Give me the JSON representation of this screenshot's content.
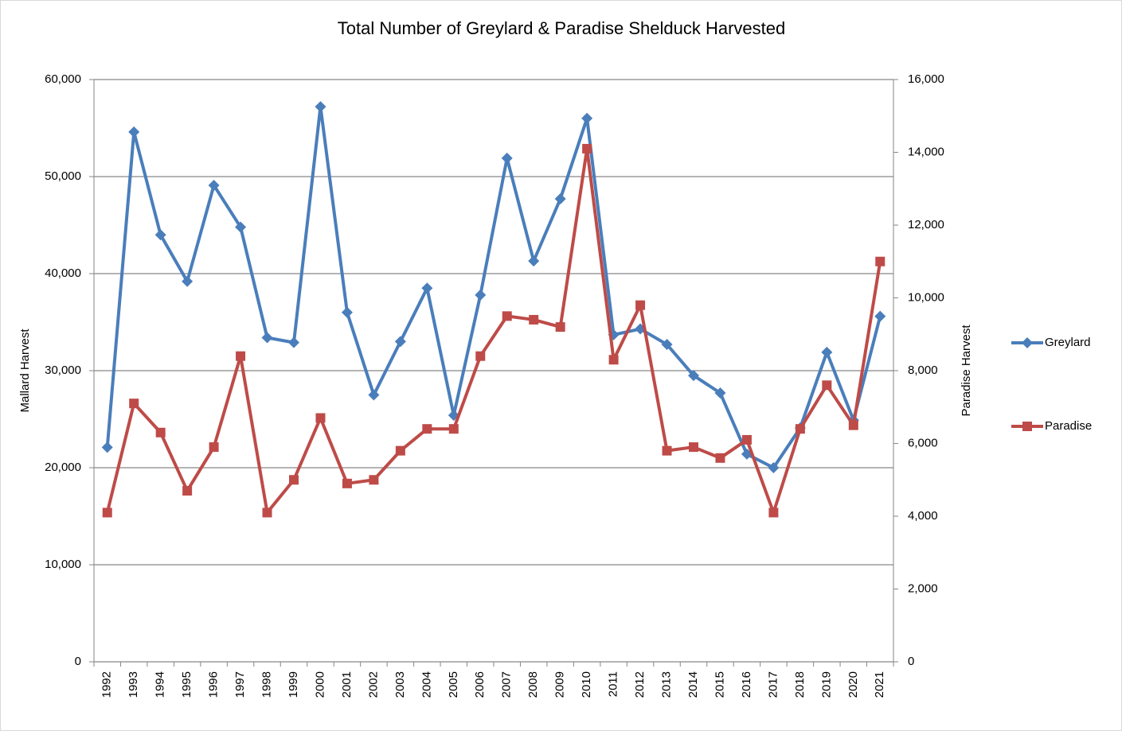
{
  "chart_data": {
    "type": "line",
    "title": "Total Number of Greylard & Paradise Shelduck Harvested",
    "y_label": "Mallard Harvest",
    "y2_label": "Paradise Harvest",
    "categories": [
      "1992",
      "1993",
      "1994",
      "1995",
      "1996",
      "1997",
      "1998",
      "1999",
      "2000",
      "2001",
      "2002",
      "2003",
      "2004",
      "2005",
      "2006",
      "2007",
      "2008",
      "2009",
      "2010",
      "2011",
      "2012",
      "2013",
      "2014",
      "2015",
      "2016",
      "2017",
      "2018",
      "2019",
      "2020",
      "2021"
    ],
    "series": [
      {
        "name": "Greylard",
        "color": "#4a7ebb",
        "marker": "diamond",
        "values": [
          22100,
          54600,
          44000,
          39200,
          49100,
          44800,
          33400,
          32900,
          57200,
          36000,
          27500,
          33000,
          38500,
          25400,
          37800,
          51900,
          41300,
          47700,
          56000,
          33700,
          34300,
          32700,
          29500,
          27700,
          21400,
          20000,
          24100,
          31900,
          24900,
          35600
        ]
      },
      {
        "name": "Paradise",
        "color": "#be4b48",
        "marker": "square",
        "axis": "y2",
        "values": [
          4100,
          7100,
          6300,
          4700,
          5900,
          8400,
          4100,
          5000,
          6700,
          4900,
          5000,
          5800,
          6400,
          6400,
          8400,
          9500,
          9400,
          9200,
          14100,
          8300,
          9800,
          5800,
          5900,
          5600,
          6100,
          4100,
          6400,
          7600,
          6500,
          11000
        ]
      }
    ],
    "ylim": [
      0,
      60000
    ],
    "yticks": [
      0,
      {
        "value": 10000,
        "label": "10,000"
      },
      {
        "value": 20000,
        "label": "20,000"
      },
      {
        "value": 30000,
        "label": "30,000"
      },
      {
        "value": 40000,
        "label": "40,000"
      },
      {
        "value": 50000,
        "label": "50,000"
      },
      {
        "value": 60000,
        "label": "60,000"
      }
    ],
    "y2lim": [
      0,
      16000
    ],
    "y2ticks": [
      0,
      {
        "value": 2000,
        "label": "2,000"
      },
      {
        "value": 4000,
        "label": "4,000"
      },
      {
        "value": 6000,
        "label": "6,000"
      },
      {
        "value": 8000,
        "label": "8,000"
      },
      {
        "value": 10000,
        "label": "10,000"
      },
      {
        "value": 12000,
        "label": "12,000"
      },
      {
        "value": 14000,
        "label": "14,000"
      },
      {
        "value": 16000,
        "label": "16,000"
      }
    ],
    "grid": true,
    "legend": "right"
  }
}
